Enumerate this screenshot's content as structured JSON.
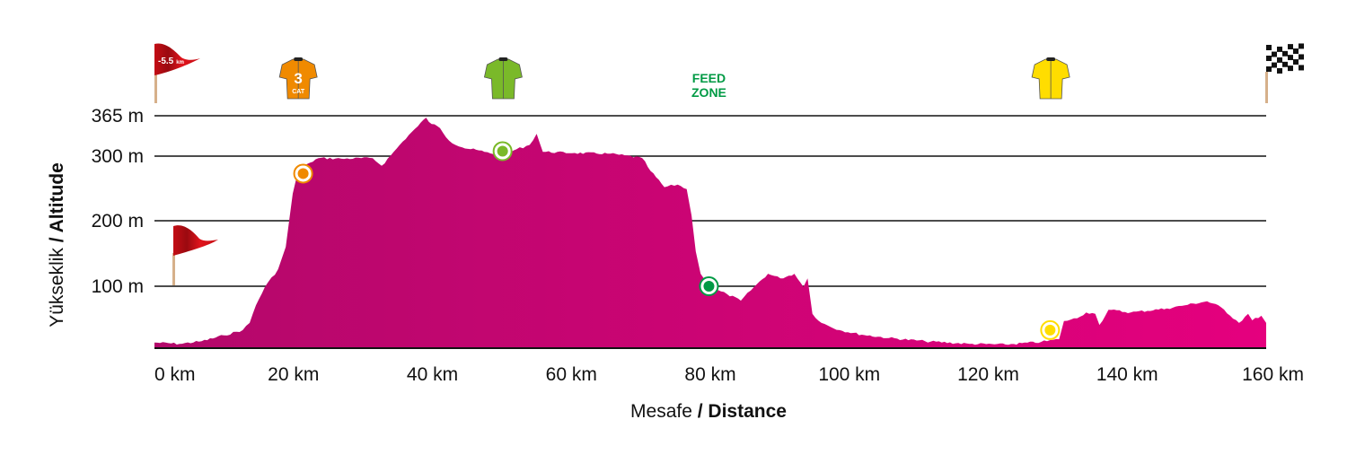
{
  "chart_data": {
    "type": "area",
    "title": "",
    "xlabel": {
      "normal": "Mesafe",
      "bold": " / Distance"
    },
    "ylabel": {
      "normal": "Yükseklik",
      "bold": " / Altitude"
    },
    "xlim": [
      0,
      160
    ],
    "ylim": [
      0,
      365
    ],
    "grid": true,
    "x_ticks": [
      {
        "value": 0,
        "label": "0 km"
      },
      {
        "value": 20,
        "label": "20 km"
      },
      {
        "value": 40,
        "label": "40 km"
      },
      {
        "value": 60,
        "label": "60 km"
      },
      {
        "value": 80,
        "label": "80 km"
      },
      {
        "value": 100,
        "label": "100 km"
      },
      {
        "value": 120,
        "label": "120 km"
      },
      {
        "value": 140,
        "label": "140 km"
      },
      {
        "value": 160,
        "label": "160 km"
      }
    ],
    "y_ticks": [
      {
        "value": 100,
        "label": "100 m"
      },
      {
        "value": 200,
        "label": "200 m"
      },
      {
        "value": 300,
        "label": "300 m"
      },
      {
        "value": 365,
        "label": "365 m"
      }
    ],
    "colors": {
      "fill_start": "#b3086a",
      "fill_end": "#e5007e"
    },
    "profile": [
      [
        0,
        14
      ],
      [
        3.6,
        12
      ],
      [
        6.8,
        16
      ],
      [
        10,
        25
      ],
      [
        12.7,
        33
      ],
      [
        13.7,
        44
      ],
      [
        14.6,
        71
      ],
      [
        15.9,
        99
      ],
      [
        17.8,
        126
      ],
      [
        18.9,
        160
      ],
      [
        19.4,
        201
      ],
      [
        19.9,
        242
      ],
      [
        20.7,
        277
      ],
      [
        22.4,
        290
      ],
      [
        23.6,
        297
      ],
      [
        26.9,
        296
      ],
      [
        31.4,
        297
      ],
      [
        32.7,
        285
      ],
      [
        34,
        301
      ],
      [
        35.3,
        318
      ],
      [
        36.6,
        334
      ],
      [
        37.9,
        348
      ],
      [
        39.1,
        362
      ],
      [
        39.5,
        355
      ],
      [
        41.1,
        345
      ],
      [
        42.4,
        325
      ],
      [
        44.3,
        314
      ],
      [
        47.5,
        307
      ],
      [
        50.1,
        301
      ],
      [
        52.1,
        311
      ],
      [
        54,
        318
      ],
      [
        55,
        336
      ],
      [
        55.9,
        307
      ],
      [
        60.5,
        305
      ],
      [
        65.6,
        304
      ],
      [
        70.2,
        297
      ],
      [
        71.4,
        277
      ],
      [
        73.4,
        252
      ],
      [
        75.3,
        256
      ],
      [
        76.6,
        249
      ],
      [
        77.3,
        208
      ],
      [
        77.9,
        153
      ],
      [
        78.6,
        119
      ],
      [
        79.8,
        99
      ],
      [
        82.4,
        88
      ],
      [
        84.4,
        78
      ],
      [
        86.3,
        99
      ],
      [
        88.3,
        119
      ],
      [
        90.1,
        112
      ],
      [
        92.1,
        119
      ],
      [
        93.4,
        99
      ],
      [
        94,
        112
      ],
      [
        94.7,
        58
      ],
      [
        96,
        44
      ],
      [
        98.6,
        33
      ],
      [
        101.8,
        26
      ],
      [
        105.7,
        21
      ],
      [
        110.9,
        16
      ],
      [
        117.3,
        12
      ],
      [
        122.5,
        11
      ],
      [
        127.6,
        15
      ],
      [
        130.2,
        19
      ],
      [
        130.9,
        47
      ],
      [
        132.8,
        51
      ],
      [
        134.1,
        60
      ],
      [
        135.4,
        58
      ],
      [
        136,
        41
      ],
      [
        137.3,
        64
      ],
      [
        140.5,
        60
      ],
      [
        145.7,
        66
      ],
      [
        148.3,
        71
      ],
      [
        151.5,
        77
      ],
      [
        153.5,
        68
      ],
      [
        156.1,
        44
      ],
      [
        157.4,
        58
      ],
      [
        158,
        48
      ],
      [
        159.3,
        55
      ],
      [
        160,
        44
      ]
    ],
    "markers": [
      {
        "name": "climb-cat3",
        "km": 21.4,
        "alt": 273,
        "color": "#f08a00"
      },
      {
        "name": "sprint",
        "km": 50.1,
        "alt": 308,
        "color": "#7ab929"
      },
      {
        "name": "feed-zone",
        "km": 79.8,
        "alt": 100,
        "color": "#009a44"
      },
      {
        "name": "bonus",
        "km": 128.9,
        "alt": 33,
        "color": "#ffdd00"
      }
    ],
    "annotations": [
      {
        "type": "neutral-start-flag",
        "km": 0,
        "label": "-5.5",
        "unit": "km"
      },
      {
        "type": "jersey",
        "km": 20.7,
        "color": "#f08a00",
        "number": "3",
        "category": "CAT"
      },
      {
        "type": "jersey",
        "km": 50.2,
        "color": "#7ab929"
      },
      {
        "type": "feed-zone",
        "km": 79.8,
        "line1": "FEED",
        "line2": "ZONE",
        "color": "#009a44"
      },
      {
        "type": "jersey",
        "km": 129,
        "color": "#ffdd00"
      },
      {
        "type": "finish-flag",
        "km": 160
      }
    ]
  }
}
